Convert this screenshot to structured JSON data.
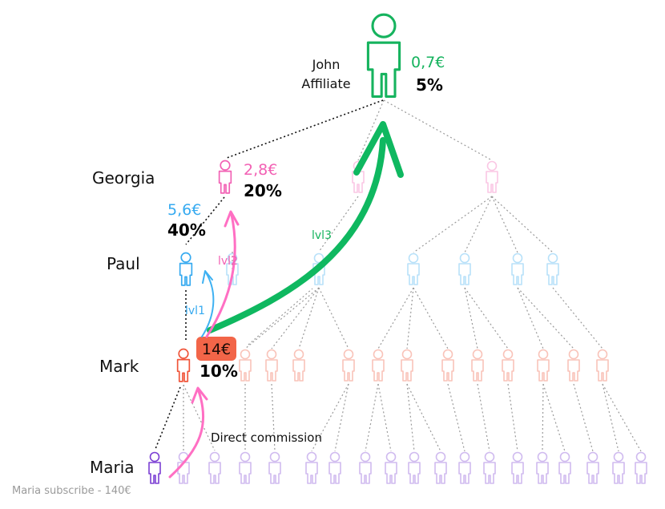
{
  "colors": {
    "john": "#16b35e",
    "georgia": "#f261b4",
    "paul": "#36aaf0",
    "mark": "#f0553a",
    "maria": "#7b3fd4",
    "arrow_pink": "#ff6fc3",
    "arrow_blue": "#3fb1f2",
    "arrow_green": "#0fb860",
    "dotted": "#9a9a9a"
  },
  "people": {
    "john": {
      "name_line1": "John",
      "name_line2": "Affiliate",
      "amount": "0,7€",
      "percent": "5%"
    },
    "georgia": {
      "name": "Georgia",
      "amount": "2,8€",
      "percent": "20%"
    },
    "paul": {
      "name": "Paul",
      "amount": "5,6€",
      "percent": "40%"
    },
    "mark": {
      "name": "Mark",
      "amount": "14€",
      "percent": "10%"
    },
    "maria": {
      "name": "Maria"
    }
  },
  "arrows": {
    "lvl1": "lvl1",
    "lvl2": "lvl2",
    "lvl3": "lvl3"
  },
  "labels": {
    "direct_commission": "Direct commission",
    "footer": "Maria subscribe - 140€"
  },
  "icons": {
    "person": "person-icon",
    "arrow": "curved-arrow-icon"
  }
}
